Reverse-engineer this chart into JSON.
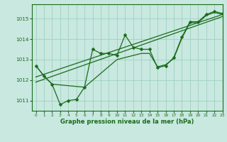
{
  "title": "Graphe pression niveau de la mer (hPa)",
  "background_color": "#c8e8e0",
  "grid_color": "#99ccbb",
  "line_color": "#1a6b1a",
  "xlim": [
    -0.5,
    23
  ],
  "ylim": [
    1010.5,
    1015.7
  ],
  "yticks": [
    1011,
    1012,
    1013,
    1014,
    1015
  ],
  "xticks": [
    0,
    1,
    2,
    3,
    4,
    5,
    6,
    7,
    8,
    9,
    10,
    11,
    12,
    13,
    14,
    15,
    16,
    17,
    18,
    19,
    20,
    21,
    22,
    23
  ],
  "main_x": [
    0,
    1,
    2,
    3,
    4,
    5,
    6,
    7,
    8,
    9,
    10,
    11,
    12,
    13,
    14,
    15,
    16,
    17,
    18,
    19,
    20,
    21,
    22,
    23
  ],
  "main_y": [
    1012.7,
    1012.2,
    1011.8,
    1010.8,
    1011.0,
    1011.05,
    1011.65,
    1013.5,
    1013.3,
    1013.3,
    1013.2,
    1014.2,
    1013.6,
    1013.5,
    1013.5,
    1012.6,
    1012.7,
    1013.1,
    1014.1,
    1014.85,
    1014.85,
    1015.2,
    1015.35,
    1015.25
  ],
  "line2_x": [
    0,
    1,
    2,
    6,
    10,
    12,
    13,
    14,
    15,
    16,
    17,
    18,
    19,
    20,
    21,
    22,
    23
  ],
  "line2_y": [
    1012.7,
    1012.2,
    1011.8,
    1011.65,
    1013.0,
    1013.2,
    1013.3,
    1013.3,
    1012.65,
    1012.75,
    1013.05,
    1014.05,
    1014.8,
    1014.8,
    1015.15,
    1015.3,
    1015.2
  ],
  "trend1_x": [
    0,
    23
  ],
  "trend1_y": [
    1011.9,
    1015.1
  ],
  "trend2_x": [
    0,
    23
  ],
  "trend2_y": [
    1012.15,
    1015.2
  ],
  "title_fontsize": 6,
  "tick_fontsize": 5,
  "linewidth": 0.9,
  "markersize": 2.5
}
